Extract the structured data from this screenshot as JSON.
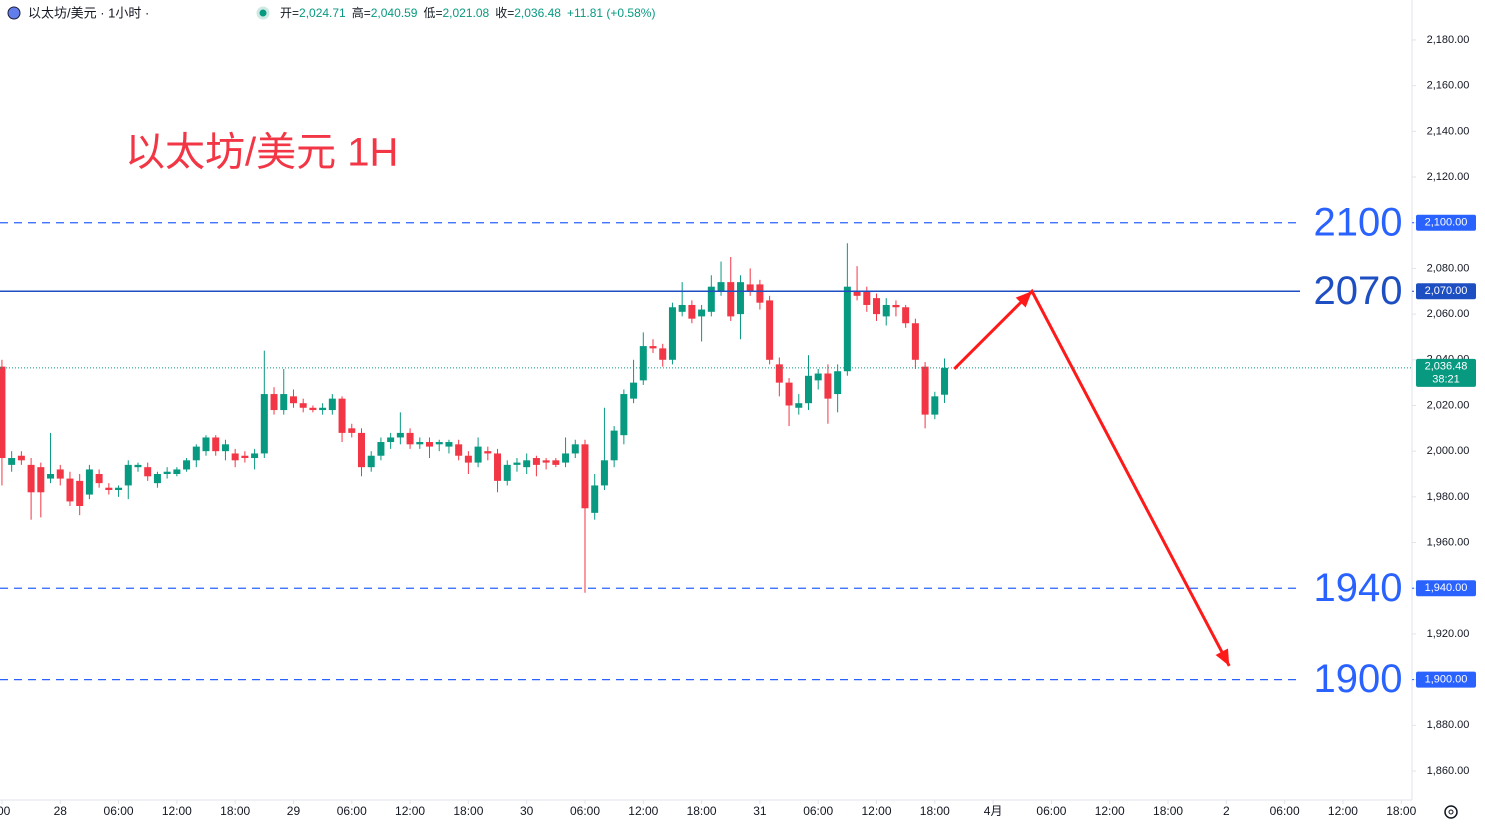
{
  "chart_data": {
    "type": "candlestick",
    "header": {
      "symbol": "以太坊/美元 · 1小时 ·",
      "ohlc": [
        {
          "key": "开=",
          "value": "2,024.71"
        },
        {
          "key": "高=",
          "value": "2,040.59"
        },
        {
          "key": "低=",
          "value": "2,021.08"
        },
        {
          "key": "收=",
          "value": "2,036.48"
        }
      ],
      "change": "+11.81 (+0.58%)"
    },
    "title": "以太坊/美元 1H",
    "up_color": "#089981",
    "down_color": "#f23645",
    "x": [
      0,
      1,
      2,
      3,
      4,
      5,
      6,
      7,
      8,
      9,
      10,
      11,
      12,
      13,
      14,
      15,
      16,
      17,
      18,
      19,
      20,
      21,
      22,
      23,
      24,
      25,
      26,
      27,
      28,
      29,
      30,
      31,
      32,
      33,
      34,
      35,
      36,
      37,
      38,
      39,
      40,
      41,
      42,
      43,
      44,
      45,
      46,
      47,
      48,
      49,
      50,
      51,
      52,
      53,
      54,
      55,
      56,
      57,
      58,
      59,
      60,
      61,
      62,
      63,
      64,
      65,
      66,
      67,
      68,
      69,
      70,
      71,
      72,
      73,
      74,
      75,
      76,
      77,
      78,
      79,
      80,
      81,
      82,
      83,
      84,
      85,
      86,
      87,
      88,
      89,
      90,
      91,
      92,
      93,
      94,
      95,
      96,
      97
    ],
    "open": [
      2037,
      1994,
      1998,
      1994,
      1993,
      1988,
      1992,
      1988,
      1987,
      1981,
      1990,
      1984,
      1983,
      1985,
      1993,
      1993,
      1986,
      1990,
      1990,
      1992,
      1996,
      2000,
      2006,
      2000,
      1999,
      1998,
      1997,
      1999,
      2025,
      2018,
      2024,
      2021,
      2019,
      2018,
      2018,
      2023,
      2010,
      2008,
      1993,
      1998,
      2004,
      2006,
      2008,
      2003,
      2004,
      2003,
      2002,
      2003,
      1998,
      1995,
      2000,
      1999,
      1987,
      1994,
      1993,
      1997,
      1996,
      1996,
      1995,
      1999,
      2003,
      1973,
      1985,
      1996,
      2007,
      2023,
      2031,
      2046,
      2045,
      2040,
      2061,
      2064,
      2059,
      2061,
      2070,
      2074,
      2060,
      2073,
      2073,
      2066,
      2038,
      2030,
      2019,
      2021,
      2031,
      2034,
      2025,
      2035,
      2070,
      2070,
      2067,
      2059,
      2064,
      2063,
      2056,
      2037,
      2016,
      2024.71
    ],
    "high": [
      2040,
      2000,
      2000,
      1997,
      1995,
      2008,
      1994,
      1991,
      1990,
      1994,
      1992,
      1986,
      1985,
      1996,
      1995,
      1995,
      1991,
      1993,
      1993,
      1997,
      2003,
      2007,
      2007,
      2005,
      2001,
      2000,
      2001,
      2044,
      2028,
      2036,
      2027,
      2023,
      2020,
      2021,
      2025,
      2024,
      2012,
      2010,
      2000,
      2006,
      2008,
      2017,
      2010,
      2006,
      2006,
      2005,
      2005,
      2005,
      2000,
      2006,
      2002,
      2001,
      1996,
      1997,
      1999,
      1998,
      1997,
      1997,
      2006,
      2005,
      2005,
      1990,
      2019,
      2011,
      2027,
      2040,
      2052,
      2049,
      2047,
      2065,
      2074,
      2066,
      2064,
      2077,
      2083,
      2085,
      2077,
      2080,
      2075,
      2068,
      2041,
      2032,
      2025,
      2042,
      2036,
      2038,
      2038,
      2091,
      2081,
      2072,
      2069,
      2067,
      2066,
      2064,
      2058,
      2039,
      2026,
      2040.59
    ],
    "low": [
      1985,
      1991,
      1994,
      1970,
      1971,
      1986,
      1985,
      1976,
      1972,
      1979,
      1984,
      1981,
      1980,
      1979,
      1991,
      1987,
      1984,
      1988,
      1989,
      1991,
      1993,
      1998,
      1998,
      1996,
      1993,
      1995,
      1992,
      1997,
      2016,
      2016,
      2019,
      2017,
      2017,
      2016,
      2016,
      2004,
      2006,
      1989,
      1991,
      1996,
      2001,
      2003,
      2001,
      2001,
      1997,
      2000,
      1999,
      1996,
      1990,
      1993,
      1996,
      1982,
      1985,
      1991,
      1990,
      1989,
      1992,
      1993,
      1993,
      1997,
      1938,
      1970,
      1983,
      1993,
      2003,
      2021,
      2029,
      2043,
      2037,
      2038,
      2059,
      2056,
      2048,
      2059,
      2068,
      2057,
      2049,
      2068,
      2062,
      2038,
      2024,
      2011,
      2016,
      2018,
      2027,
      2012,
      2017,
      2033,
      2066,
      2061,
      2057,
      2055,
      2059,
      2054,
      2036,
      2010,
      2014,
      2021.08
    ],
    "close": [
      1997,
      1997,
      1996,
      1982,
      1982,
      1990,
      1988,
      1978,
      1976,
      1992,
      1986,
      1983,
      1984,
      1994,
      1994,
      1989,
      1990,
      1991,
      1992,
      1996,
      2002,
      2006,
      2000,
      2003,
      1996,
      1997,
      1999,
      2025,
      2018,
      2025,
      2021,
      2019,
      2018,
      2019,
      2023,
      2008,
      2008,
      1993,
      1998,
      2004,
      2006,
      2008,
      2003,
      2004,
      2002,
      2004,
      2004,
      1998,
      1995,
      2002,
      1999,
      1987,
      1994,
      1995,
      1996,
      1994,
      1995,
      1994,
      1999,
      2003,
      1975,
      1985,
      1996,
      2009,
      2025,
      2030,
      2046,
      2045,
      2040,
      2063,
      2064,
      2058,
      2062,
      2072,
      2074,
      2059,
      2074,
      2070,
      2065,
      2040,
      2030,
      2020,
      2021,
      2033,
      2034,
      2023,
      2035,
      2072,
      2068,
      2064,
      2060,
      2064,
      2063,
      2056,
      2040,
      2016,
      2024,
      2036.48
    ],
    "xlim": [
      -0.2,
      144.9
    ],
    "xticks": [
      {
        "value": 0,
        "label": ":00"
      },
      {
        "value": 6,
        "label": "28"
      },
      {
        "value": 12,
        "label": "06:00"
      },
      {
        "value": 18,
        "label": "12:00"
      },
      {
        "value": 24,
        "label": "18:00"
      },
      {
        "value": 30,
        "label": "29"
      },
      {
        "value": 36,
        "label": "06:00"
      },
      {
        "value": 42,
        "label": "12:00"
      },
      {
        "value": 48,
        "label": "18:00"
      },
      {
        "value": 54,
        "label": "30"
      },
      {
        "value": 60,
        "label": "06:00"
      },
      {
        "value": 66,
        "label": "12:00"
      },
      {
        "value": 72,
        "label": "18:00"
      },
      {
        "value": 78,
        "label": "31"
      },
      {
        "value": 84,
        "label": "06:00"
      },
      {
        "value": 90,
        "label": "12:00"
      },
      {
        "value": 96,
        "label": "18:00"
      },
      {
        "value": 102,
        "label": "4月"
      },
      {
        "value": 108,
        "label": "06:00"
      },
      {
        "value": 114,
        "label": "12:00"
      },
      {
        "value": 120,
        "label": "18:00"
      },
      {
        "value": 126,
        "label": "2"
      },
      {
        "value": 132,
        "label": "06:00"
      },
      {
        "value": 138,
        "label": "12:00"
      },
      {
        "value": 144,
        "label": "18:00"
      }
    ],
    "ylim": [
      1847.3,
      2197.5
    ],
    "yticks": [
      {
        "value": 1860,
        "label": "1,860.00"
      },
      {
        "value": 1880,
        "label": "1,880.00"
      },
      {
        "value": 1900,
        "label": "1,900.00"
      },
      {
        "value": 1920,
        "label": "1,920.00"
      },
      {
        "value": 1940,
        "label": "1,940.00"
      },
      {
        "value": 1960,
        "label": "1,960.00"
      },
      {
        "value": 1980,
        "label": "1,980.00"
      },
      {
        "value": 2000,
        "label": "2,000.00"
      },
      {
        "value": 2020,
        "label": "2,020.00"
      },
      {
        "value": 2040,
        "label": "2,040.00"
      },
      {
        "value": 2060,
        "label": "2,060.00"
      },
      {
        "value": 2080,
        "label": "2,080.00"
      },
      {
        "value": 2100,
        "label": "2,100.00"
      },
      {
        "value": 2120,
        "label": "2,120.00"
      },
      {
        "value": 2140,
        "label": "2,140.00"
      },
      {
        "value": 2160,
        "label": "2,160.00"
      },
      {
        "value": 2180,
        "label": "2,180.00"
      }
    ],
    "levels": [
      {
        "value": 2100,
        "label": "2100",
        "axis_label": "2,100.00",
        "style": "dashed",
        "color": "#2962ff"
      },
      {
        "value": 2070,
        "label": "2070",
        "axis_label": "2,070.00",
        "style": "solid",
        "color": "#1e4fc2"
      },
      {
        "value": 1940,
        "label": "1940",
        "axis_label": "1,940.00",
        "style": "dashed",
        "color": "#2962ff"
      },
      {
        "value": 1900,
        "label": "1900",
        "axis_label": "1,900.00",
        "style": "dashed",
        "color": "#2962ff"
      }
    ],
    "last_price": {
      "value": 2036.48,
      "label": "2,036.48",
      "countdown": "38:21"
    },
    "projection": {
      "x": [
        98,
        106,
        126.3
      ],
      "y": [
        2036,
        2070,
        1906
      ],
      "color": "#ff1a1a"
    }
  }
}
